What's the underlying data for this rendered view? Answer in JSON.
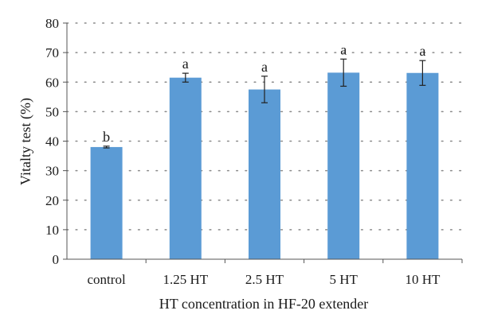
{
  "chart_data": {
    "type": "bar",
    "title": "",
    "xlabel": "HT concentration in HF-20 extender",
    "ylabel": "Vitalty test (%)",
    "ylim": [
      0,
      80
    ],
    "yticks": [
      "0",
      "10",
      "20",
      "30",
      "40",
      "50",
      "60",
      "70",
      "80"
    ],
    "grid": true,
    "grid_style": "dotted horizontal",
    "categories": [
      "control",
      "1.25 HT",
      "2.5 HT",
      "5 HT",
      "10 HT"
    ],
    "values": [
      38,
      61.5,
      57.5,
      63.2,
      63.1
    ],
    "error": [
      0.3,
      1.5,
      4.5,
      4.6,
      4.2
    ],
    "significance_labels": [
      "b",
      "a",
      "a",
      "a",
      "a"
    ],
    "bar_color": "#5b9bd5"
  }
}
